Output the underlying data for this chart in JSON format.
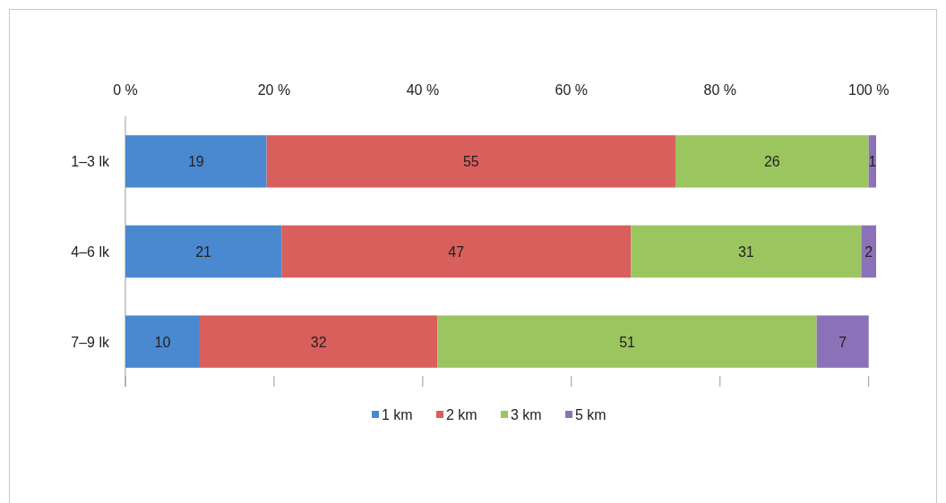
{
  "chart_data": {
    "type": "bar",
    "orientation": "horizontal",
    "stacked": true,
    "categories": [
      "1–3 lk",
      "4–6 lk",
      "7–9 lk"
    ],
    "series": [
      {
        "name": "1 km",
        "color": "#4a89cf",
        "values": [
          19,
          21,
          10
        ]
      },
      {
        "name": "2 km",
        "color": "#d95f5c",
        "values": [
          55,
          47,
          32
        ]
      },
      {
        "name": "3 km",
        "color": "#9bc55f",
        "values": [
          26,
          31,
          51
        ]
      },
      {
        "name": "5 km",
        "color": "#8b72b8",
        "values": [
          1,
          2,
          7
        ]
      }
    ],
    "xlim": [
      0,
      101
    ],
    "xticks": [
      {
        "value": 0,
        "label": "0 %"
      },
      {
        "value": 20,
        "label": "20 %"
      },
      {
        "value": 40,
        "label": "40 %"
      },
      {
        "value": 60,
        "label": "60 %"
      },
      {
        "value": 80,
        "label": "80 %"
      },
      {
        "value": 100,
        "label": "100 %"
      }
    ],
    "data_labels": true,
    "legend": "bottom",
    "grid": false
  }
}
